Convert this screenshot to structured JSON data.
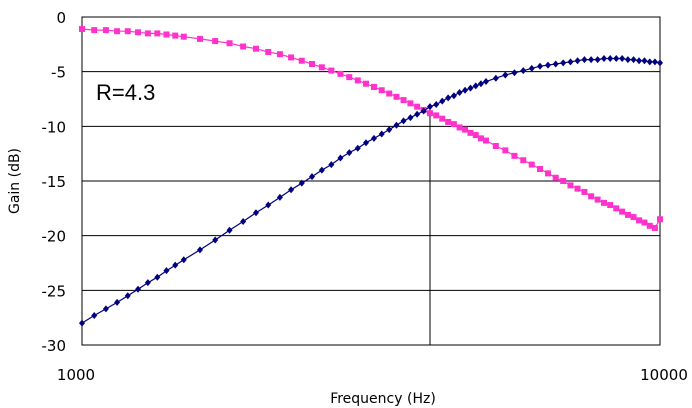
{
  "chart_data": {
    "type": "line",
    "xlabel": "Frequency (Hz)",
    "ylabel": "Gain (dB)",
    "x_scale": "log",
    "xlim": [
      1000,
      10000
    ],
    "ylim": [
      -30,
      0
    ],
    "x_ticks": [
      "1000",
      "10000"
    ],
    "y_ticks": [
      "0",
      "-5",
      "-10",
      "-15",
      "-20",
      "-25",
      "-30"
    ],
    "grid": "horizontal",
    "annotation": "R=4.3",
    "marker_line_x": 4000,
    "x": [
      1000,
      1050,
      1100,
      1150,
      1200,
      1250,
      1300,
      1350,
      1400,
      1450,
      1500,
      1600,
      1700,
      1800,
      1900,
      2000,
      2100,
      2200,
      2300,
      2400,
      2500,
      2600,
      2700,
      2800,
      2900,
      3000,
      3100,
      3200,
      3300,
      3400,
      3500,
      3600,
      3700,
      3800,
      3900,
      4000,
      4100,
      4200,
      4300,
      4400,
      4500,
      4600,
      4700,
      4800,
      4900,
      5000,
      5200,
      5400,
      5600,
      5800,
      6000,
      6200,
      6400,
      6600,
      6800,
      7000,
      7200,
      7400,
      7600,
      7800,
      8000,
      8200,
      8400,
      8600,
      8800,
      9000,
      9200,
      9400,
      9600,
      9800,
      10000
    ],
    "series": [
      {
        "color": "#ff33cc",
        "marker": "square",
        "values": [
          -1.1,
          -1.2,
          -1.2,
          -1.3,
          -1.3,
          -1.4,
          -1.5,
          -1.5,
          -1.6,
          -1.7,
          -1.8,
          -2.0,
          -2.2,
          -2.4,
          -2.7,
          -2.9,
          -3.2,
          -3.4,
          -3.7,
          -4.0,
          -4.3,
          -4.6,
          -4.9,
          -5.2,
          -5.5,
          -5.8,
          -6.1,
          -6.4,
          -6.7,
          -7.0,
          -7.3,
          -7.6,
          -7.9,
          -8.2,
          -8.5,
          -8.8,
          -9.0,
          -9.3,
          -9.6,
          -9.8,
          -10.1,
          -10.3,
          -10.6,
          -10.8,
          -11.1,
          -11.3,
          -11.8,
          -12.2,
          -12.7,
          -13.1,
          -13.5,
          -13.9,
          -14.3,
          -14.7,
          -15.0,
          -15.4,
          -15.7,
          -16.0,
          -16.4,
          -16.7,
          -17.0,
          -17.2,
          -17.5,
          -17.8,
          -18.1,
          -18.3,
          -18.6,
          -18.8,
          -19.1,
          -19.3,
          -18.5
        ]
      },
      {
        "color": "#000080",
        "marker": "diamond",
        "values": [
          -28.0,
          -27.3,
          -26.7,
          -26.1,
          -25.5,
          -24.9,
          -24.3,
          -23.8,
          -23.2,
          -22.7,
          -22.2,
          -21.3,
          -20.4,
          -19.5,
          -18.7,
          -17.9,
          -17.2,
          -16.5,
          -15.8,
          -15.2,
          -14.6,
          -14.0,
          -13.5,
          -12.9,
          -12.4,
          -12.0,
          -11.5,
          -11.1,
          -10.7,
          -10.3,
          -9.9,
          -9.5,
          -9.2,
          -8.9,
          -8.6,
          -8.2,
          -8.0,
          -7.7,
          -7.4,
          -7.2,
          -6.9,
          -6.7,
          -6.5,
          -6.3,
          -6.1,
          -5.9,
          -5.6,
          -5.3,
          -5.1,
          -4.9,
          -4.7,
          -4.5,
          -4.4,
          -4.3,
          -4.2,
          -4.1,
          -4.0,
          -3.9,
          -3.9,
          -3.9,
          -3.8,
          -3.8,
          -3.8,
          -3.8,
          -3.9,
          -3.9,
          -4.0,
          -4.0,
          -4.1,
          -4.1,
          -4.2
        ]
      }
    ]
  }
}
